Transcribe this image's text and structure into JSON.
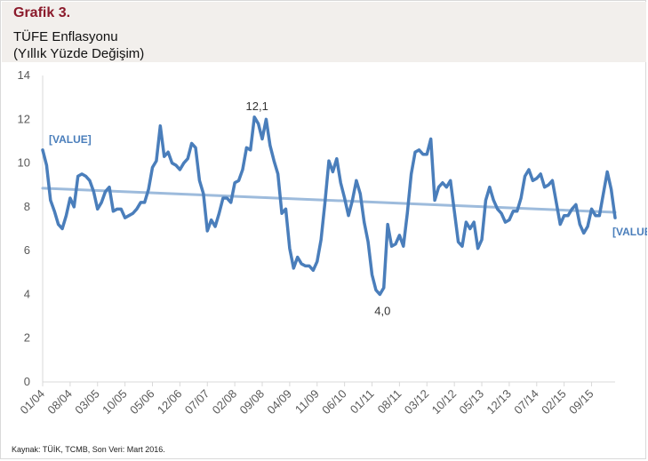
{
  "header": {
    "grafik_label": "Grafik 3.",
    "title_line1": "TÜFE Enflasyonu",
    "title_line2": "(Yıllık Yüzde Değişim)"
  },
  "footer": {
    "source": "Kaynak: TÜİK, TCMB, Son Veri: Mart 2016."
  },
  "colors": {
    "series": "#4a7ebb",
    "trend": "#9dbbdc",
    "header_bg": "#f2efec",
    "grafik_label": "#8b1a2b"
  },
  "chart_data": {
    "type": "line",
    "title": "TÜFE Enflasyonu",
    "subtitle": "(Yıllık Yüzde Değişim)",
    "xlabel": "",
    "ylabel": "",
    "ylim": [
      0,
      14
    ],
    "yticks": [
      "0",
      "2",
      "4",
      "6",
      "8",
      "10",
      "12",
      "14"
    ],
    "xtick_labels": [
      "01/04",
      "08/04",
      "03/05",
      "10/05",
      "05/06",
      "12/06",
      "07/07",
      "02/08",
      "09/08",
      "04/09",
      "11/09",
      "06/10",
      "01/11",
      "08/11",
      "03/12",
      "10/12",
      "05/13",
      "12/13",
      "07/14",
      "02/15",
      "09/15"
    ],
    "grid": false,
    "legend": "none",
    "series": [
      {
        "kind": "data",
        "x_start": "01/2004",
        "values": [
          10.6,
          9.9,
          8.3,
          7.8,
          7.2,
          7.0,
          7.6,
          8.4,
          8.0,
          9.4,
          9.5,
          9.4,
          9.2,
          8.7,
          7.9,
          8.2,
          8.7,
          8.9,
          7.8,
          7.9,
          7.9,
          7.5,
          7.6,
          7.7,
          7.9,
          8.2,
          8.2,
          8.8,
          9.8,
          10.1,
          11.7,
          10.3,
          10.5,
          10.0,
          9.9,
          9.7,
          10.0,
          10.2,
          10.9,
          10.7,
          9.2,
          8.6,
          6.9,
          7.4,
          7.1,
          7.7,
          8.4,
          8.4,
          8.2,
          9.1,
          9.2,
          9.7,
          10.7,
          10.6,
          12.1,
          11.8,
          11.1,
          12.0,
          10.8,
          10.1,
          9.5,
          7.7,
          7.9,
          6.1,
          5.2,
          5.7,
          5.4,
          5.3,
          5.3,
          5.1,
          5.5,
          6.5,
          8.2,
          10.1,
          9.6,
          10.2,
          9.1,
          8.4,
          7.6,
          8.3,
          9.2,
          8.6,
          7.3,
          6.4,
          4.9,
          4.2,
          4.0,
          4.3,
          7.2,
          6.2,
          6.3,
          6.7,
          6.2,
          7.7,
          9.5,
          10.5,
          10.6,
          10.4,
          10.4,
          11.1,
          8.3,
          8.9,
          9.1,
          8.9,
          9.2,
          7.8,
          6.4,
          6.2,
          7.3,
          7.0,
          7.3,
          6.1,
          6.5,
          8.3,
          8.9,
          8.3,
          7.9,
          7.7,
          7.3,
          7.4,
          7.8,
          7.8,
          8.4,
          9.4,
          9.7,
          9.2,
          9.3,
          9.5,
          8.9,
          9.0,
          9.2,
          8.2,
          7.2,
          7.6,
          7.6,
          7.9,
          8.1,
          7.2,
          6.8,
          7.1,
          7.9,
          7.6,
          7.6,
          8.6,
          9.6,
          8.8,
          7.5
        ]
      },
      {
        "kind": "trend",
        "start": 8.85,
        "end": 7.75
      }
    ],
    "annotations": [
      {
        "text": "12,1",
        "x_index": 54
      },
      {
        "text": "4,0",
        "x_index": 86
      },
      {
        "text": "[VALUE]",
        "x_index": 0
      },
      {
        "text": "[VALUE]",
        "x_index": 146
      }
    ]
  }
}
